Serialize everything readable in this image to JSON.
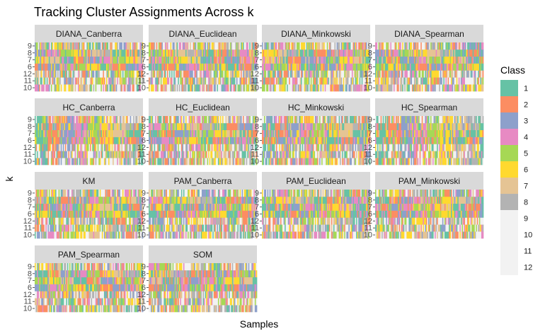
{
  "chart_data": {
    "type": "heatmap",
    "title": "Tracking Cluster Assignments Across k",
    "xlabel": "Samples",
    "ylabel": "k",
    "y_categories": [
      "10",
      "11",
      "12",
      "6",
      "7",
      "8",
      "9"
    ],
    "n_samples": 100,
    "facets": [
      {
        "name": "DIANA_Canberra",
        "base": [
          4,
          1,
          7,
          2,
          6,
          3,
          5
        ]
      },
      {
        "name": "DIANA_Euclidean",
        "base": [
          6,
          3,
          8,
          1,
          4,
          5,
          2
        ]
      },
      {
        "name": "DIANA_Minkowski",
        "base": [
          5,
          2,
          1,
          4,
          7,
          6,
          3
        ]
      },
      {
        "name": "DIANA_Spearman",
        "base": [
          7,
          6,
          2,
          5,
          1,
          3,
          4
        ]
      },
      {
        "name": "HC_Canberra",
        "base": [
          1,
          1,
          1,
          1,
          1,
          1,
          1
        ]
      },
      {
        "name": "HC_Euclidean",
        "base": [
          1,
          2,
          1,
          3,
          1,
          4,
          1
        ]
      },
      {
        "name": "HC_Minkowski",
        "base": [
          1,
          3,
          1,
          2,
          1,
          1,
          3
        ]
      },
      {
        "name": "HC_Spearman",
        "base": [
          1,
          1,
          1,
          1,
          1,
          1,
          1
        ]
      },
      {
        "name": "KM",
        "base": [
          3,
          2,
          4,
          6,
          2,
          8,
          5
        ]
      },
      {
        "name": "PAM_Canberra",
        "base": [
          2,
          5,
          3,
          1,
          6,
          4,
          7
        ]
      },
      {
        "name": "PAM_Euclidean",
        "base": [
          8,
          4,
          2,
          6,
          1,
          5,
          3
        ]
      },
      {
        "name": "PAM_Minkowski",
        "base": [
          4,
          6,
          3,
          7,
          2,
          1,
          5
        ]
      },
      {
        "name": "PAM_Spearman",
        "base": [
          2,
          7,
          4,
          3,
          5,
          1,
          6
        ]
      },
      {
        "name": "SOM",
        "base": [
          3,
          8,
          5,
          2,
          7,
          6,
          4
        ]
      }
    ],
    "legend": {
      "title": "Class",
      "position": "right",
      "items": [
        {
          "label": "1",
          "color": "#66C2A5"
        },
        {
          "label": "2",
          "color": "#FC8D62"
        },
        {
          "label": "3",
          "color": "#8DA0CB"
        },
        {
          "label": "4",
          "color": "#E78AC3"
        },
        {
          "label": "5",
          "color": "#A6D854"
        },
        {
          "label": "6",
          "color": "#FFD92F"
        },
        {
          "label": "7",
          "color": "#E5C494"
        },
        {
          "label": "8",
          "color": "#B3B3B3"
        },
        {
          "label": "9",
          "color": "#F2F2F2"
        },
        {
          "label": "10",
          "color": "#F2F2F2"
        },
        {
          "label": "11",
          "color": "#F2F2F2"
        },
        {
          "label": "12",
          "color": "#F2F2F2"
        }
      ]
    },
    "grid": false,
    "strip_fill": "#D9D9D9"
  }
}
